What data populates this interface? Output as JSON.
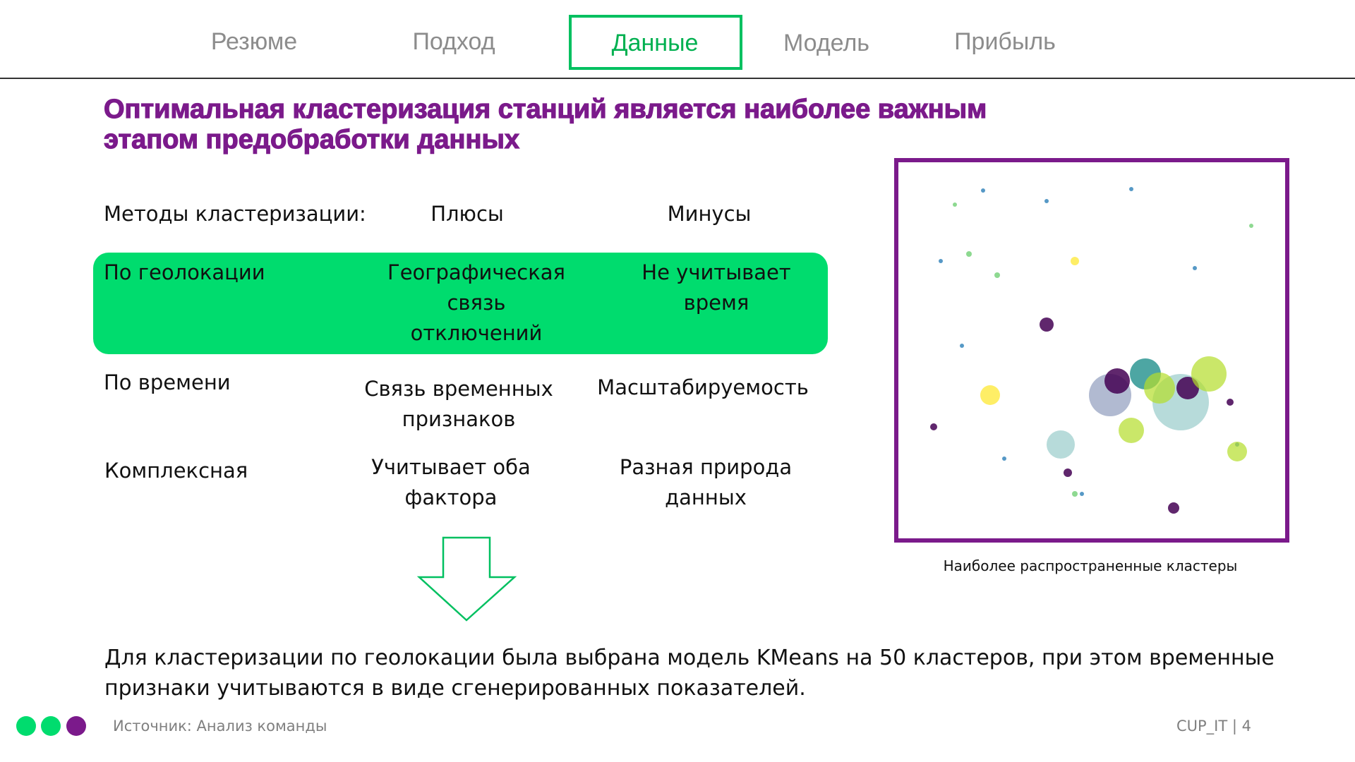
{
  "nav": {
    "items": [
      "Резюме",
      "Подход",
      "Данные",
      "Модель",
      "Прибыль"
    ],
    "active": 2
  },
  "title": [
    "Оптимальная кластеризация станций является наиболее важным",
    "этапом предобработки данных"
  ],
  "table": {
    "headers": [
      "Методы кластеризации:",
      "Плюсы",
      "Минусы"
    ],
    "rows": [
      [
        [
          "По геолокации"
        ],
        [
          "Географическая",
          "связь",
          "отключений"
        ],
        [
          "Не учитывает",
          "время"
        ]
      ],
      [
        [
          "По времени"
        ],
        [
          "Связь временных",
          "признаков"
        ],
        [
          "Масштабируемость"
        ]
      ],
      [
        [
          "Комплексная"
        ],
        [
          "Учитывает оба",
          "фактора"
        ],
        [
          "Разная природа",
          "данных"
        ]
      ]
    ]
  },
  "figure": {
    "caption": "Наиболее распространенные кластеры"
  },
  "conclusion": [
    "Для кластеризации по геолокации была выбрана модель KMeans на 50 кластеров, при этом временные",
    "признаки учитываются в виде сгенерированных показателей."
  ],
  "footer": {
    "source": "Источник: Анализ команды",
    "page": "CUP_IT | 4"
  }
}
